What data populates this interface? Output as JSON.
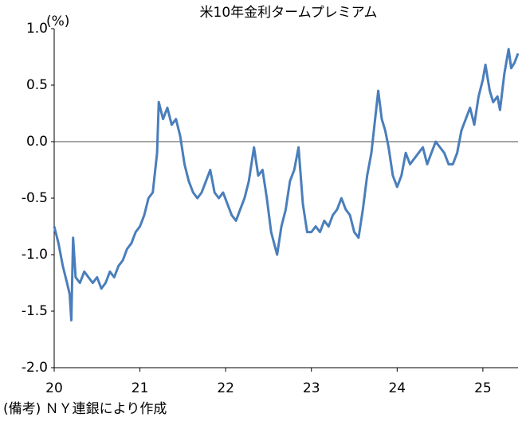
{
  "chart_data": {
    "type": "line",
    "title": "米10年金利タームプレミアム",
    "y_unit": "(%)",
    "note": "(備考) ＮＹ連銀により作成",
    "x": [
      20.0,
      20.05,
      20.1,
      20.15,
      20.18,
      20.2,
      20.22,
      20.25,
      20.3,
      20.35,
      20.4,
      20.45,
      20.5,
      20.55,
      20.6,
      20.65,
      20.7,
      20.75,
      20.8,
      20.85,
      20.9,
      20.95,
      21.0,
      21.05,
      21.1,
      21.15,
      21.2,
      21.22,
      21.27,
      21.32,
      21.37,
      21.42,
      21.47,
      21.52,
      21.57,
      21.62,
      21.67,
      21.72,
      21.77,
      21.82,
      21.87,
      21.92,
      21.97,
      22.02,
      22.07,
      22.12,
      22.17,
      22.22,
      22.27,
      22.33,
      22.38,
      22.43,
      22.48,
      22.53,
      22.6,
      22.65,
      22.7,
      22.75,
      22.8,
      22.85,
      22.9,
      22.95,
      23.0,
      23.05,
      23.1,
      23.15,
      23.2,
      23.25,
      23.3,
      23.35,
      23.4,
      23.45,
      23.5,
      23.55,
      23.6,
      23.65,
      23.7,
      23.78,
      23.82,
      23.86,
      23.9,
      23.95,
      24.0,
      24.05,
      24.1,
      24.15,
      24.2,
      24.25,
      24.3,
      24.35,
      24.4,
      24.45,
      24.5,
      24.55,
      24.6,
      24.65,
      24.7,
      24.75,
      24.8,
      24.85,
      24.9,
      24.95,
      25.0,
      25.03,
      25.08,
      25.12,
      25.17,
      25.2,
      25.25,
      25.3,
      25.33,
      25.37,
      25.41
    ],
    "series": [
      {
        "name": "タームプレミアム",
        "color": "#4a7ebb",
        "values": [
          -0.75,
          -0.9,
          -1.1,
          -1.25,
          -1.35,
          -1.58,
          -0.85,
          -1.2,
          -1.25,
          -1.15,
          -1.2,
          -1.25,
          -1.2,
          -1.3,
          -1.25,
          -1.15,
          -1.2,
          -1.1,
          -1.05,
          -0.95,
          -0.9,
          -0.8,
          -0.75,
          -0.65,
          -0.5,
          -0.45,
          -0.1,
          0.35,
          0.2,
          0.3,
          0.15,
          0.2,
          0.05,
          -0.2,
          -0.35,
          -0.45,
          -0.5,
          -0.45,
          -0.35,
          -0.25,
          -0.45,
          -0.5,
          -0.45,
          -0.55,
          -0.65,
          -0.7,
          -0.6,
          -0.5,
          -0.35,
          -0.05,
          -0.3,
          -0.25,
          -0.5,
          -0.8,
          -1.0,
          -0.75,
          -0.6,
          -0.35,
          -0.25,
          -0.05,
          -0.55,
          -0.8,
          -0.8,
          -0.75,
          -0.8,
          -0.7,
          -0.75,
          -0.65,
          -0.6,
          -0.5,
          -0.6,
          -0.65,
          -0.8,
          -0.85,
          -0.6,
          -0.3,
          -0.1,
          0.45,
          0.2,
          0.1,
          -0.05,
          -0.3,
          -0.4,
          -0.3,
          -0.1,
          -0.2,
          -0.15,
          -0.1,
          -0.05,
          -0.2,
          -0.1,
          0.0,
          -0.05,
          -0.1,
          -0.2,
          -0.2,
          -0.1,
          0.1,
          0.2,
          0.3,
          0.15,
          0.4,
          0.55,
          0.68,
          0.45,
          0.35,
          0.4,
          0.28,
          0.6,
          0.82,
          0.65,
          0.7,
          0.78
        ]
      }
    ],
    "xlim": [
      20,
      25.41
    ],
    "xticks": [
      20,
      21,
      22,
      23,
      24,
      25
    ],
    "ylim": [
      -2,
      1
    ],
    "yticks": [
      {
        "value": -2,
        "label": "-2.0"
      },
      -1.5,
      {
        "value": -1,
        "label": "-1.0"
      },
      -0.5,
      {
        "value": 0,
        "label": "0.0"
      },
      0.5,
      {
        "value": 1,
        "label": "1.0"
      }
    ],
    "zero_line": true
  }
}
